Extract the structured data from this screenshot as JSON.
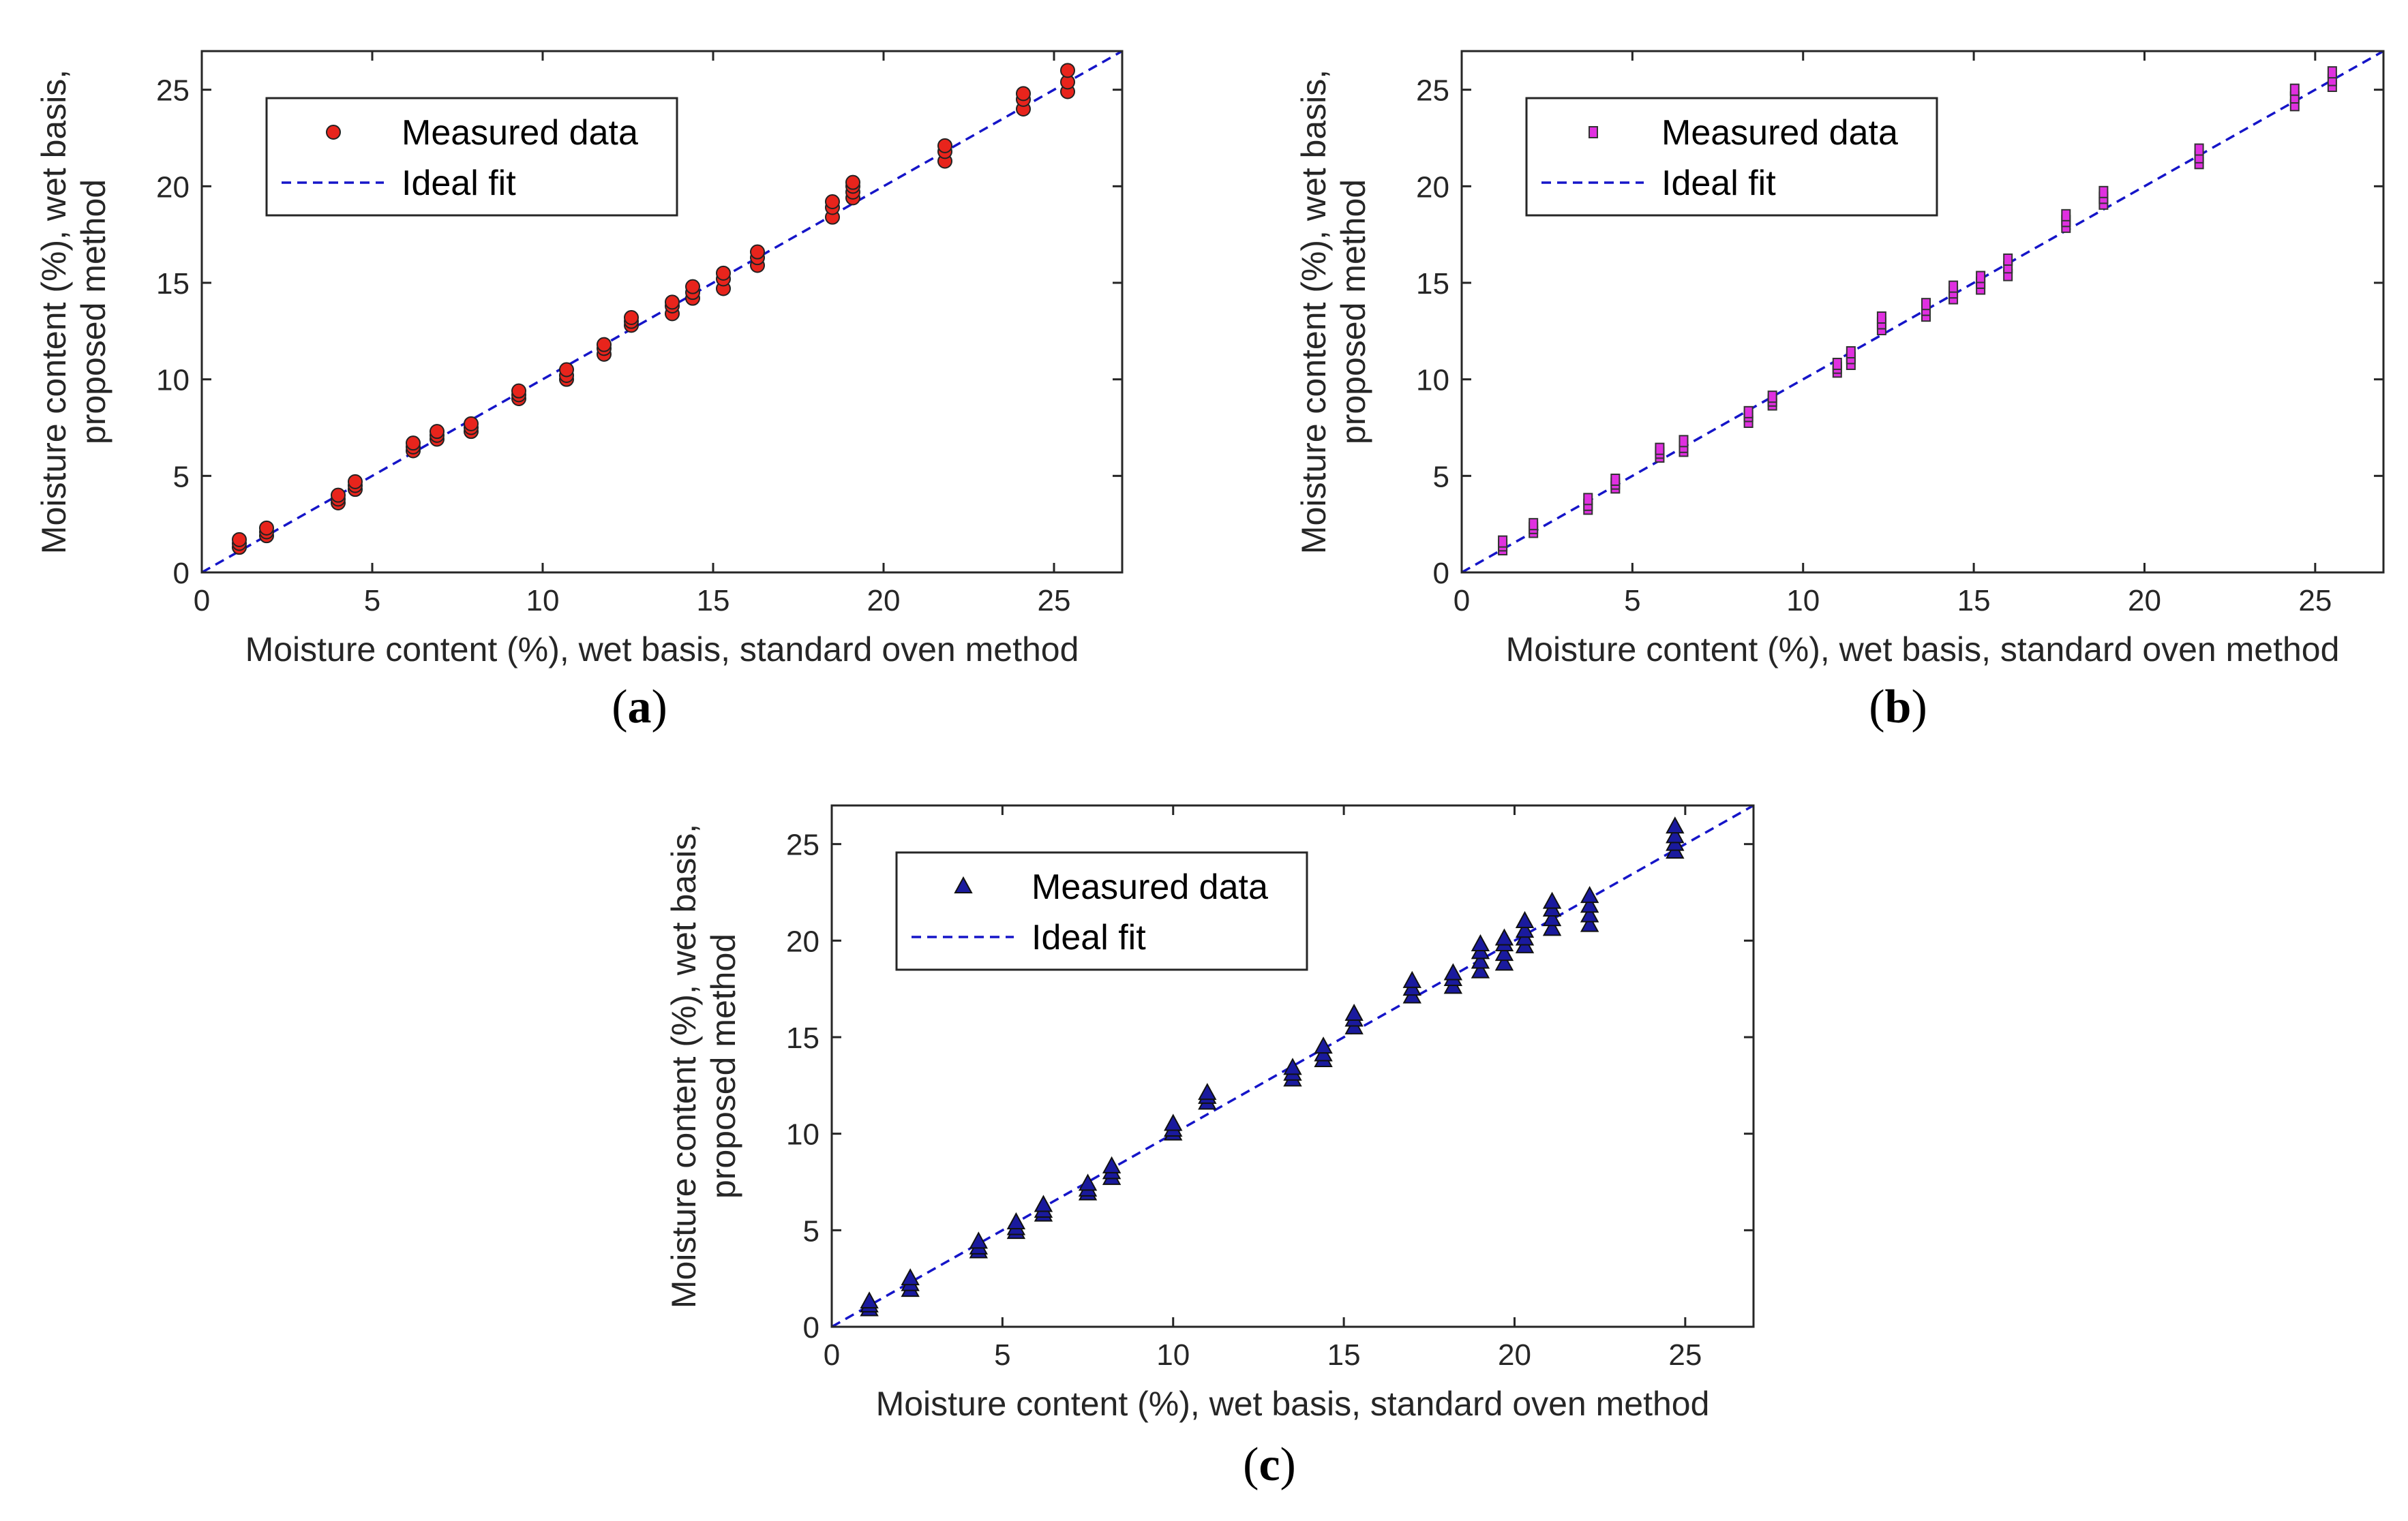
{
  "figure": {
    "captions": [
      "(a)",
      "(b)",
      "(c)"
    ]
  },
  "colors": {
    "ideal_line": "#1515c8",
    "marker_a": "#e8241c",
    "marker_b": "#e030e0",
    "marker_c": "#1a1a9e",
    "axis": "#262626"
  },
  "chart_data": [
    {
      "id": "a",
      "type": "scatter",
      "caption": "(a)",
      "marker": "circle",
      "xlabel": "Moisture content (%), wet basis, standard oven method",
      "ylabel": [
        "Moisture content (%), wet basis,",
        "proposed method"
      ],
      "xlim": [
        0,
        27
      ],
      "ylim": [
        0,
        27
      ],
      "xticks": [
        0,
        5,
        10,
        15,
        20,
        25
      ],
      "yticks": [
        0,
        5,
        10,
        15,
        20,
        25
      ],
      "legend": {
        "position": "top-left",
        "entries": [
          "Measured data",
          "Ideal fit"
        ]
      },
      "ideal_fit": {
        "x": [
          0,
          27
        ],
        "y": [
          0,
          27
        ]
      },
      "series": [
        {
          "name": "Measured data",
          "points": [
            [
              1.1,
              1.3
            ],
            [
              1.1,
              1.5
            ],
            [
              1.1,
              1.7
            ],
            [
              1.9,
              1.9
            ],
            [
              1.9,
              2.1
            ],
            [
              1.9,
              2.3
            ],
            [
              4.0,
              3.6
            ],
            [
              4.0,
              3.8
            ],
            [
              4.0,
              4.0
            ],
            [
              4.5,
              4.3
            ],
            [
              4.5,
              4.5
            ],
            [
              4.5,
              4.7
            ],
            [
              6.2,
              6.3
            ],
            [
              6.2,
              6.5
            ],
            [
              6.2,
              6.7
            ],
            [
              6.9,
              6.9
            ],
            [
              6.9,
              7.1
            ],
            [
              6.9,
              7.3
            ],
            [
              7.9,
              7.3
            ],
            [
              7.9,
              7.5
            ],
            [
              7.9,
              7.7
            ],
            [
              9.3,
              9.0
            ],
            [
              9.3,
              9.2
            ],
            [
              9.3,
              9.4
            ],
            [
              10.7,
              10.0
            ],
            [
              10.7,
              10.2
            ],
            [
              10.7,
              10.5
            ],
            [
              11.8,
              11.3
            ],
            [
              11.8,
              11.6
            ],
            [
              11.8,
              11.8
            ],
            [
              12.6,
              12.8
            ],
            [
              12.6,
              13.0
            ],
            [
              12.6,
              13.2
            ],
            [
              13.8,
              13.4
            ],
            [
              13.8,
              13.8
            ],
            [
              13.8,
              14.0
            ],
            [
              14.4,
              14.2
            ],
            [
              14.4,
              14.5
            ],
            [
              14.4,
              14.8
            ],
            [
              15.3,
              14.7
            ],
            [
              15.3,
              15.2
            ],
            [
              15.3,
              15.5
            ],
            [
              16.3,
              15.9
            ],
            [
              16.3,
              16.3
            ],
            [
              16.3,
              16.6
            ],
            [
              18.5,
              18.4
            ],
            [
              18.5,
              18.9
            ],
            [
              18.5,
              19.2
            ],
            [
              19.1,
              19.4
            ],
            [
              19.1,
              19.7
            ],
            [
              19.1,
              20.0
            ],
            [
              19.1,
              20.2
            ],
            [
              21.8,
              21.3
            ],
            [
              21.8,
              21.8
            ],
            [
              21.8,
              22.1
            ],
            [
              24.1,
              24.0
            ],
            [
              24.1,
              24.5
            ],
            [
              24.1,
              24.8
            ],
            [
              25.4,
              24.9
            ],
            [
              25.4,
              25.4
            ],
            [
              25.4,
              26.0
            ]
          ]
        }
      ]
    },
    {
      "id": "b",
      "type": "scatter",
      "caption": "(b)",
      "marker": "square",
      "xlabel": "Moisture content (%), wet basis, standard oven method",
      "ylabel": [
        "Moisture content (%), wet basis,",
        "proposed method"
      ],
      "xlim": [
        0,
        27
      ],
      "ylim": [
        0,
        27
      ],
      "xticks": [
        0,
        5,
        10,
        15,
        20,
        25
      ],
      "yticks": [
        0,
        5,
        10,
        15,
        20,
        25
      ],
      "legend": {
        "position": "top-left",
        "entries": [
          "Measured data",
          "Ideal fit"
        ]
      },
      "ideal_fit": {
        "x": [
          0,
          27
        ],
        "y": [
          0,
          27
        ]
      },
      "series": [
        {
          "name": "Measured data",
          "points": [
            [
              1.2,
              1.2
            ],
            [
              1.2,
              1.4
            ],
            [
              1.2,
              1.6
            ],
            [
              2.1,
              2.1
            ],
            [
              2.1,
              2.3
            ],
            [
              2.1,
              2.5
            ],
            [
              3.7,
              3.3
            ],
            [
              3.7,
              3.5
            ],
            [
              3.7,
              3.8
            ],
            [
              4.5,
              4.4
            ],
            [
              4.5,
              4.6
            ],
            [
              4.5,
              4.8
            ],
            [
              5.8,
              6.0
            ],
            [
              5.8,
              6.2
            ],
            [
              5.8,
              6.4
            ],
            [
              6.5,
              6.3
            ],
            [
              6.5,
              6.5
            ],
            [
              6.5,
              6.8
            ],
            [
              8.4,
              7.8
            ],
            [
              8.4,
              8.1
            ],
            [
              8.4,
              8.3
            ],
            [
              9.1,
              8.7
            ],
            [
              9.1,
              8.9
            ],
            [
              9.1,
              9.1
            ],
            [
              11.0,
              10.4
            ],
            [
              11.0,
              10.6
            ],
            [
              11.0,
              10.8
            ],
            [
              11.4,
              10.8
            ],
            [
              11.4,
              11.1
            ],
            [
              11.4,
              11.4
            ],
            [
              12.3,
              12.6
            ],
            [
              12.3,
              12.9
            ],
            [
              12.3,
              13.2
            ],
            [
              13.6,
              13.3
            ],
            [
              13.6,
              13.6
            ],
            [
              13.6,
              13.9
            ],
            [
              14.4,
              14.2
            ],
            [
              14.4,
              14.5
            ],
            [
              14.4,
              14.8
            ],
            [
              15.2,
              14.7
            ],
            [
              15.2,
              15.0
            ],
            [
              15.2,
              15.3
            ],
            [
              16.0,
              15.4
            ],
            [
              16.0,
              15.8
            ],
            [
              16.0,
              16.2
            ],
            [
              17.7,
              17.9
            ],
            [
              17.7,
              18.2
            ],
            [
              17.7,
              18.5
            ],
            [
              18.8,
              19.1
            ],
            [
              18.8,
              19.4
            ],
            [
              18.8,
              19.7
            ],
            [
              21.6,
              21.2
            ],
            [
              21.6,
              21.5
            ],
            [
              21.6,
              21.9
            ],
            [
              24.4,
              24.2
            ],
            [
              24.4,
              24.6
            ],
            [
              24.4,
              25.0
            ],
            [
              25.5,
              25.2
            ],
            [
              25.5,
              25.5
            ],
            [
              25.5,
              25.9
            ]
          ]
        }
      ]
    },
    {
      "id": "c",
      "type": "scatter",
      "caption": "(c)",
      "marker": "triangle",
      "xlabel": "Moisture content (%), wet basis, standard oven method",
      "ylabel": [
        "Moisture content (%), wet basis,",
        "proposed method"
      ],
      "xlim": [
        0,
        27
      ],
      "ylim": [
        0,
        27
      ],
      "xticks": [
        0,
        5,
        10,
        15,
        20,
        25
      ],
      "yticks": [
        0,
        5,
        10,
        15,
        20,
        25
      ],
      "legend": {
        "position": "top-left",
        "entries": [
          "Measured data",
          "Ideal fit"
        ]
      },
      "ideal_fit": {
        "x": [
          0,
          27
        ],
        "y": [
          0,
          27
        ]
      },
      "series": [
        {
          "name": "Measured data",
          "points": [
            [
              1.1,
              0.9
            ],
            [
              1.1,
              1.1
            ],
            [
              1.1,
              1.3
            ],
            [
              2.3,
              1.9
            ],
            [
              2.3,
              2.2
            ],
            [
              2.3,
              2.5
            ],
            [
              4.3,
              3.9
            ],
            [
              4.3,
              4.1
            ],
            [
              4.3,
              4.4
            ],
            [
              5.4,
              4.9
            ],
            [
              5.4,
              5.1
            ],
            [
              5.4,
              5.4
            ],
            [
              6.2,
              5.8
            ],
            [
              6.2,
              6.0
            ],
            [
              6.2,
              6.3
            ],
            [
              7.5,
              6.9
            ],
            [
              7.5,
              7.1
            ],
            [
              7.5,
              7.4
            ],
            [
              8.2,
              7.7
            ],
            [
              8.2,
              8.0
            ],
            [
              8.2,
              8.3
            ],
            [
              10.0,
              10.0
            ],
            [
              10.0,
              10.2
            ],
            [
              10.0,
              10.5
            ],
            [
              11.0,
              11.6
            ],
            [
              11.0,
              11.9
            ],
            [
              11.0,
              12.1
            ],
            [
              13.5,
              12.8
            ],
            [
              13.5,
              13.1
            ],
            [
              13.5,
              13.4
            ],
            [
              14.4,
              13.8
            ],
            [
              14.4,
              14.1
            ],
            [
              14.4,
              14.5
            ],
            [
              15.3,
              15.5
            ],
            [
              15.3,
              15.9
            ],
            [
              15.3,
              16.2
            ],
            [
              17.0,
              17.1
            ],
            [
              17.0,
              17.5
            ],
            [
              17.0,
              17.9
            ],
            [
              18.2,
              17.6
            ],
            [
              18.2,
              18.0
            ],
            [
              18.2,
              18.3
            ],
            [
              19.0,
              18.4
            ],
            [
              19.0,
              18.9
            ],
            [
              19.0,
              19.4
            ],
            [
              19.0,
              19.8
            ],
            [
              19.7,
              18.8
            ],
            [
              19.7,
              19.3
            ],
            [
              19.7,
              19.8
            ],
            [
              19.7,
              20.1
            ],
            [
              20.3,
              19.7
            ],
            [
              20.3,
              20.1
            ],
            [
              20.3,
              20.5
            ],
            [
              20.3,
              21.0
            ],
            [
              21.1,
              20.6
            ],
            [
              21.1,
              21.1
            ],
            [
              21.1,
              21.6
            ],
            [
              21.1,
              22.0
            ],
            [
              22.2,
              20.8
            ],
            [
              22.2,
              21.3
            ],
            [
              22.2,
              21.8
            ],
            [
              22.2,
              22.3
            ],
            [
              24.7,
              24.6
            ],
            [
              24.7,
              25.0
            ],
            [
              24.7,
              25.4
            ],
            [
              24.7,
              25.9
            ]
          ]
        }
      ]
    }
  ]
}
